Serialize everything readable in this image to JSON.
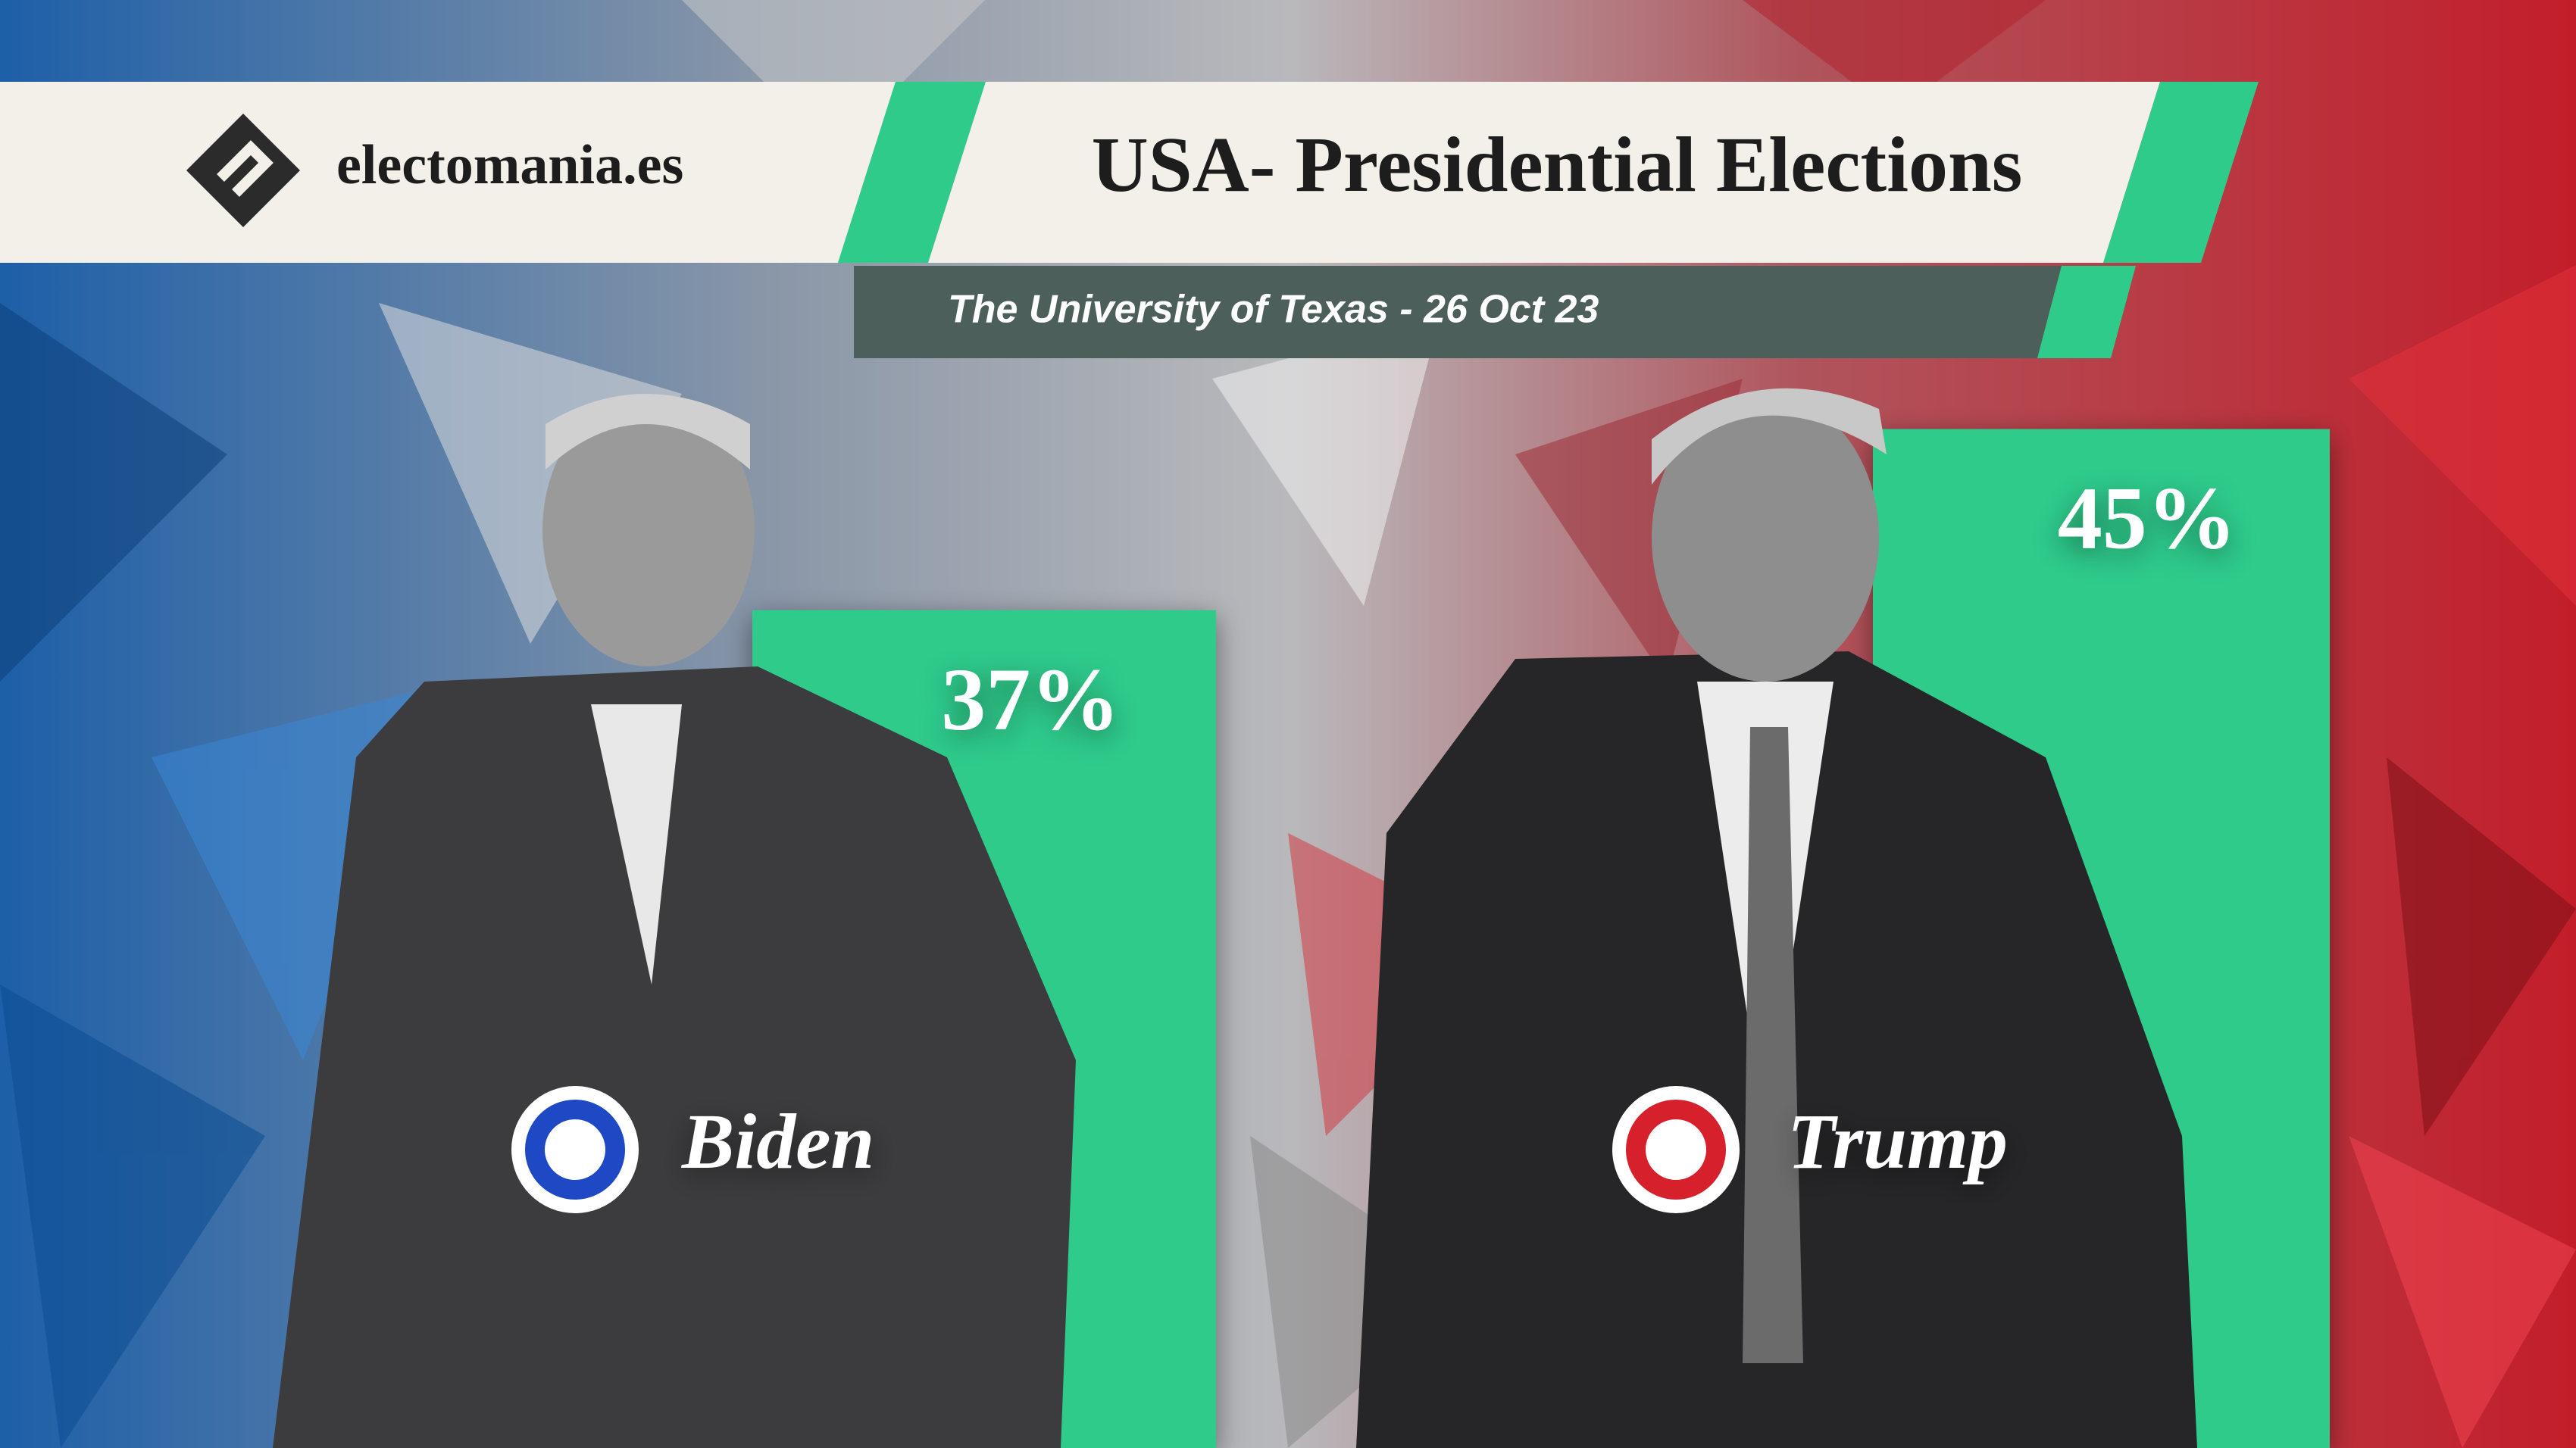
{
  "header": {
    "brand": "electomania.es"
  },
  "chart_data": {
    "type": "bar",
    "title": "USA- Presidential Elections",
    "subtitle": "The University of Texas - 26 Oct 23",
    "categories": [
      "Biden",
      "Trump"
    ],
    "values": [
      37,
      45
    ],
    "value_labels": [
      "37%",
      "45%"
    ],
    "color": "#2ecb8b"
  }
}
